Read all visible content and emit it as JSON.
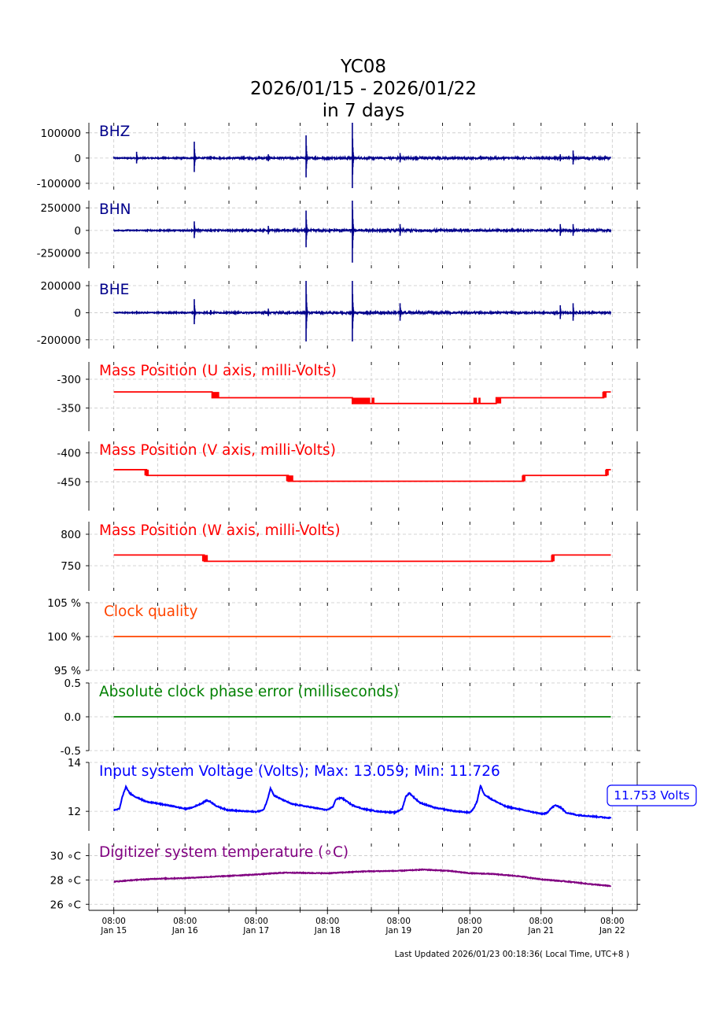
{
  "chart_data": {
    "type": "line",
    "title_lines": [
      "YC08",
      "2026/01/15 - 2026/01/22",
      "in 7 days"
    ],
    "x": {
      "range_days": [
        -0.35,
        7.35
      ],
      "tick_days": [
        0,
        1,
        2,
        3,
        4,
        5,
        6,
        7
      ],
      "tick_time": [
        "08:00",
        "08:00",
        "08:00",
        "08:00",
        "08:00",
        "08:00",
        "08:00",
        "08:00"
      ],
      "tick_date": [
        "Jan 15",
        "Jan 16",
        "Jan 17",
        "Jan 18",
        "Jan 19",
        "Jan 20",
        "Jan 21",
        "Jan 22"
      ],
      "minor_tick_days": [
        0.6167,
        1.6167,
        2.6167,
        3.6167,
        4.6167,
        5.6167,
        6.6167
      ],
      "data_end_day": 6.98
    },
    "panels": [
      {
        "id": "bhz",
        "kind": "seismic",
        "label": "BHZ",
        "label_color": "#00008b",
        "color": "#00008b",
        "ylim": [
          -125000,
          140000
        ],
        "yticks": [
          100000,
          0,
          -100000
        ],
        "yticklabels": [
          "100000",
          "0",
          "-100000"
        ],
        "events": [
          [
            0.32,
            25000
          ],
          [
            1.13,
            65000
          ],
          [
            1.36,
            8000
          ],
          [
            2.17,
            15000
          ],
          [
            2.7,
            90000
          ],
          [
            3.35,
            140000
          ],
          [
            3.55,
            4000
          ],
          [
            3.78,
            3000
          ],
          [
            4.02,
            20000
          ],
          [
            6.27,
            15000
          ],
          [
            6.45,
            30000
          ]
        ],
        "noise": [
          [
            0,
            2000
          ],
          [
            4.2,
            4000
          ],
          [
            5.0,
            4000
          ],
          [
            6.0,
            3000
          ],
          [
            6.98,
            4000
          ]
        ]
      },
      {
        "id": "bhn",
        "kind": "seismic",
        "label": "BHN",
        "label_color": "#00008b",
        "color": "#00008b",
        "ylim": [
          -420000,
          330000
        ],
        "yticks": [
          250000,
          0,
          -250000
        ],
        "yticklabels": [
          "250000",
          "0",
          "-250000"
        ],
        "events": [
          [
            0.32,
            15000
          ],
          [
            1.13,
            100000
          ],
          [
            1.36,
            20000
          ],
          [
            2.17,
            50000
          ],
          [
            2.7,
            220000
          ],
          [
            3.35,
            420000
          ],
          [
            3.55,
            20000
          ],
          [
            3.78,
            15000
          ],
          [
            4.02,
            70000
          ],
          [
            6.27,
            70000
          ],
          [
            6.45,
            70000
          ]
        ],
        "noise": [
          [
            0,
            5000
          ],
          [
            4.2,
            12000
          ],
          [
            5.0,
            10000
          ],
          [
            6.0,
            8000
          ],
          [
            6.98,
            10000
          ]
        ]
      },
      {
        "id": "bhe",
        "kind": "seismic",
        "label": "BHE",
        "label_color": "#00008b",
        "color": "#00008b",
        "ylim": [
          -265000,
          235000
        ],
        "yticks": [
          200000,
          0,
          -200000
        ],
        "yticklabels": [
          "200000",
          "0",
          "-200000"
        ],
        "events": [
          [
            0.32,
            15000
          ],
          [
            1.13,
            100000
          ],
          [
            1.36,
            20000
          ],
          [
            2.17,
            30000
          ],
          [
            2.7,
            250000
          ],
          [
            3.35,
            250000
          ],
          [
            3.55,
            10000
          ],
          [
            3.78,
            10000
          ],
          [
            4.02,
            70000
          ],
          [
            6.27,
            55000
          ],
          [
            6.45,
            70000
          ]
        ],
        "noise": [
          [
            0,
            3000
          ],
          [
            4.2,
            8000
          ],
          [
            5.0,
            6000
          ],
          [
            6.0,
            5000
          ],
          [
            6.98,
            6000
          ]
        ]
      },
      {
        "id": "mpu",
        "kind": "step",
        "label": "Mass Position (U axis, milli-Volts)",
        "label_color": "#ff0000",
        "color": "#ff0000",
        "ylim": [
          -390,
          -270
        ],
        "yticks": [
          -300,
          -350
        ],
        "yticklabels": [
          "-300",
          "-350"
        ],
        "steps": [
          [
            0,
            -322
          ],
          [
            1.38,
            -332
          ],
          [
            3.35,
            -342
          ],
          [
            5.37,
            -332
          ],
          [
            6.88,
            -322
          ],
          [
            6.98,
            -322
          ]
        ],
        "blocks": [
          [
            1.38,
            -327,
            0.1,
            10
          ],
          [
            3.35,
            -337,
            0.25,
            10
          ],
          [
            3.62,
            -337,
            0.04,
            10
          ],
          [
            5.05,
            -337,
            0.05,
            10
          ],
          [
            5.12,
            -337,
            0.03,
            10
          ],
          [
            5.37,
            -337,
            0.07,
            10
          ],
          [
            6.86,
            -327,
            0.06,
            10
          ]
        ]
      },
      {
        "id": "mpv",
        "kind": "step",
        "label": "Mass Position (V axis, milli-Volts)",
        "label_color": "#ff0000",
        "color": "#ff0000",
        "ylim": [
          -500,
          -380
        ],
        "yticks": [
          -400,
          -450
        ],
        "yticklabels": [
          "-400",
          "-450"
        ],
        "steps": [
          [
            0,
            -429
          ],
          [
            0.46,
            -439
          ],
          [
            2.45,
            -449
          ],
          [
            5.75,
            -439
          ],
          [
            6.92,
            -429
          ],
          [
            6.98,
            -429
          ]
        ],
        "blocks": [
          [
            0.43,
            -434,
            0.06,
            10
          ],
          [
            2.42,
            -444,
            0.1,
            10
          ],
          [
            5.73,
            -444,
            0.05,
            10
          ],
          [
            6.9,
            -434,
            0.05,
            10
          ]
        ]
      },
      {
        "id": "mpw",
        "kind": "step",
        "label": "Mass Position (W axis, milli-Volts)",
        "label_color": "#ff0000",
        "color": "#ff0000",
        "ylim": [
          710,
          820
        ],
        "yticks": [
          800,
          750
        ],
        "yticklabels": [
          "800",
          "750"
        ],
        "steps": [
          [
            0,
            767
          ],
          [
            1.27,
            757
          ],
          [
            6.16,
            767
          ],
          [
            6.98,
            767
          ]
        ],
        "blocks": [
          [
            1.24,
            762,
            0.08,
            10
          ],
          [
            6.14,
            762,
            0.05,
            10
          ]
        ]
      },
      {
        "id": "clock",
        "kind": "flat",
        "label": "Clock quality",
        "label_color": "#ff4500",
        "color": "#ff4500",
        "ylim": [
          95,
          105
        ],
        "yticks": [
          105,
          100,
          95
        ],
        "yticklabels": [
          "105 %",
          "100 %",
          "95 %"
        ],
        "value": 100
      },
      {
        "id": "phase",
        "kind": "flat",
        "label": "Absolute clock phase error (milliseconds)",
        "label_color": "#008000",
        "color": "#008000",
        "ylim": [
          -0.5,
          0.5
        ],
        "yticks": [
          0.5,
          0.0,
          -0.5
        ],
        "yticklabels": [
          "0.5",
          "0.0",
          "-0.5"
        ],
        "value": 0
      },
      {
        "id": "volt",
        "kind": "line",
        "label": "Input system Voltage (Volts);    Max: 13.059; Min: 11.726",
        "label_color": "#0000ff",
        "color": "#0000ff",
        "ylim": [
          11.2,
          14.0
        ],
        "yticks": [
          14,
          12
        ],
        "yticklabels": [
          "14",
          "12"
        ],
        "badge": "11.753 Volts",
        "series": [
          [
            0,
            12.05
          ],
          [
            0.08,
            12.1
          ],
          [
            0.12,
            12.6
          ],
          [
            0.17,
            13.0
          ],
          [
            0.22,
            12.75
          ],
          [
            0.3,
            12.6
          ],
          [
            0.45,
            12.4
          ],
          [
            0.65,
            12.3
          ],
          [
            0.85,
            12.2
          ],
          [
            1.0,
            12.1
          ],
          [
            1.1,
            12.15
          ],
          [
            1.25,
            12.35
          ],
          [
            1.3,
            12.45
          ],
          [
            1.35,
            12.4
          ],
          [
            1.45,
            12.2
          ],
          [
            1.6,
            12.05
          ],
          [
            1.85,
            12.0
          ],
          [
            2.0,
            11.98
          ],
          [
            2.1,
            12.05
          ],
          [
            2.15,
            12.4
          ],
          [
            2.2,
            12.95
          ],
          [
            2.25,
            12.65
          ],
          [
            2.35,
            12.5
          ],
          [
            2.5,
            12.3
          ],
          [
            2.7,
            12.2
          ],
          [
            2.9,
            12.1
          ],
          [
            3.0,
            12.05
          ],
          [
            3.08,
            12.2
          ],
          [
            3.12,
            12.5
          ],
          [
            3.2,
            12.55
          ],
          [
            3.25,
            12.45
          ],
          [
            3.35,
            12.25
          ],
          [
            3.5,
            12.1
          ],
          [
            3.7,
            12.0
          ],
          [
            3.95,
            11.95
          ],
          [
            4.05,
            12.1
          ],
          [
            4.1,
            12.6
          ],
          [
            4.15,
            12.75
          ],
          [
            4.22,
            12.55
          ],
          [
            4.3,
            12.35
          ],
          [
            4.5,
            12.15
          ],
          [
            4.8,
            12.0
          ],
          [
            5.0,
            11.95
          ],
          [
            5.05,
            12.1
          ],
          [
            5.1,
            12.4
          ],
          [
            5.15,
            13.05
          ],
          [
            5.2,
            12.7
          ],
          [
            5.3,
            12.5
          ],
          [
            5.5,
            12.2
          ],
          [
            5.75,
            12.05
          ],
          [
            6.0,
            11.9
          ],
          [
            6.08,
            11.92
          ],
          [
            6.13,
            12.1
          ],
          [
            6.2,
            12.25
          ],
          [
            6.28,
            12.15
          ],
          [
            6.35,
            11.95
          ],
          [
            6.5,
            11.85
          ],
          [
            6.7,
            11.8
          ],
          [
            6.85,
            11.76
          ],
          [
            6.98,
            11.73
          ]
        ]
      },
      {
        "id": "temp",
        "kind": "line",
        "label": "Digitizer system temperature (∘C)",
        "label_color": "#800080",
        "color": "#800080",
        "ylim": [
          25.5,
          31.0
        ],
        "yticks": [
          30,
          28,
          26
        ],
        "yticklabels": [
          "30 ∘C",
          "28 ∘C",
          "26 ∘C"
        ],
        "series": [
          [
            0,
            27.85
          ],
          [
            0.3,
            28.0
          ],
          [
            0.6,
            28.1
          ],
          [
            1.0,
            28.15
          ],
          [
            1.5,
            28.3
          ],
          [
            2.0,
            28.45
          ],
          [
            2.4,
            28.6
          ],
          [
            3.0,
            28.55
          ],
          [
            3.5,
            28.7
          ],
          [
            4.0,
            28.75
          ],
          [
            4.35,
            28.85
          ],
          [
            4.7,
            28.75
          ],
          [
            5.0,
            28.55
          ],
          [
            5.3,
            28.5
          ],
          [
            5.7,
            28.3
          ],
          [
            6.0,
            28.05
          ],
          [
            6.4,
            27.85
          ],
          [
            6.7,
            27.65
          ],
          [
            6.98,
            27.5
          ]
        ]
      }
    ]
  },
  "footer": {
    "last_updated": "Last Updated 2026/01/23 00:18:36( Local Time, UTC+8 )"
  }
}
